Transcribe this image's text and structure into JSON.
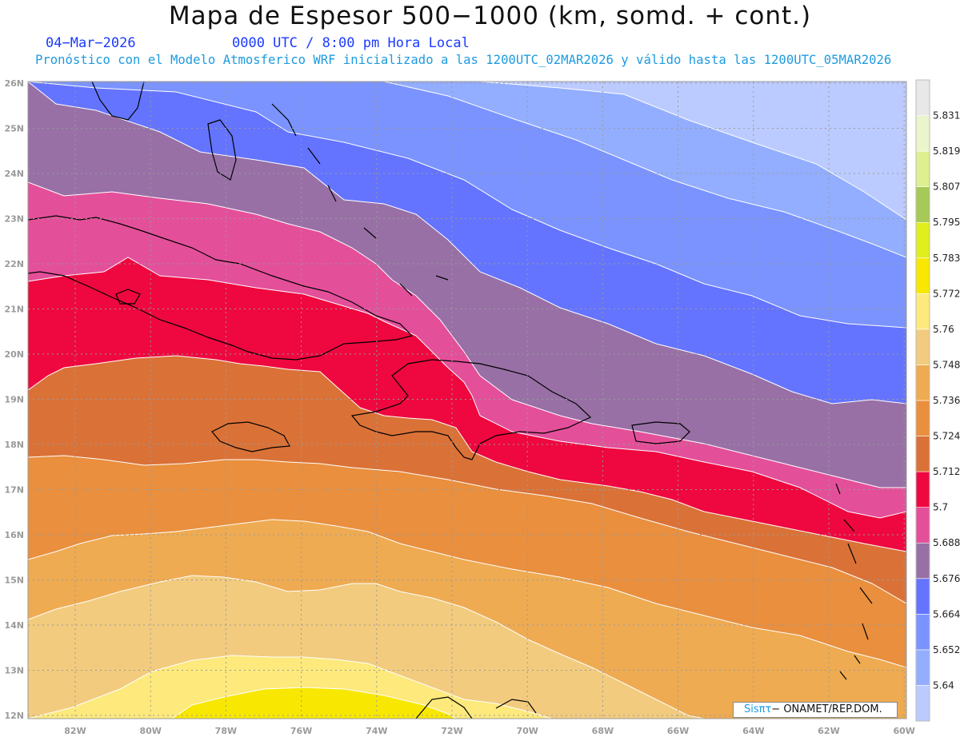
{
  "header": {
    "title": "Mapa de Espesor 500−1000 (km, somd. + cont.)",
    "date": "04−Mar−2026",
    "time": "0000 UTC / 8:00 pm Hora Local",
    "subtitle": "Pronóstico con el Modelo Atmosferico WRF inicializado a las 1200UTC_02MAR2026 y válido hasta las  1200UTC_05MAR2026"
  },
  "axes": {
    "lon_ticks": [
      "82W",
      "80W",
      "78W",
      "76W",
      "74W",
      "72W",
      "70W",
      "68W",
      "66W",
      "64W",
      "62W",
      "60W"
    ],
    "lat_ticks": [
      "12N",
      "13N",
      "14N",
      "15N",
      "16N",
      "17N",
      "18N",
      "19N",
      "20N",
      "21N",
      "22N",
      "23N",
      "24N",
      "25N",
      "26N"
    ]
  },
  "colorbar": {
    "levels": [
      "5.64",
      "5.652",
      "5.664",
      "5.676",
      "5.688",
      "5.7",
      "5.712",
      "5.724",
      "5.736",
      "5.748",
      "5.76",
      "5.772",
      "5.783",
      "5.795",
      "5.807",
      "5.819",
      "5.831"
    ],
    "colors": [
      "#bccbff",
      "#93aeff",
      "#7a93ff",
      "#6474ff",
      "#9870a6",
      "#e44f9a",
      "#ee083f",
      "#da7238",
      "#e98f3e",
      "#efab52",
      "#f2cb7e",
      "#fde97c",
      "#f8e700",
      "#dfee1c",
      "#a7c957",
      "#deef90",
      "#ebf5cc",
      "#e8e8e8"
    ]
  },
  "credit": {
    "brand": "Sisπτ",
    "text": "− ONAMET/REP.DOM."
  },
  "theme": {
    "contour_line": "#ffffff",
    "coast_line": "#000000",
    "grid_line": "#9a9a9a"
  }
}
